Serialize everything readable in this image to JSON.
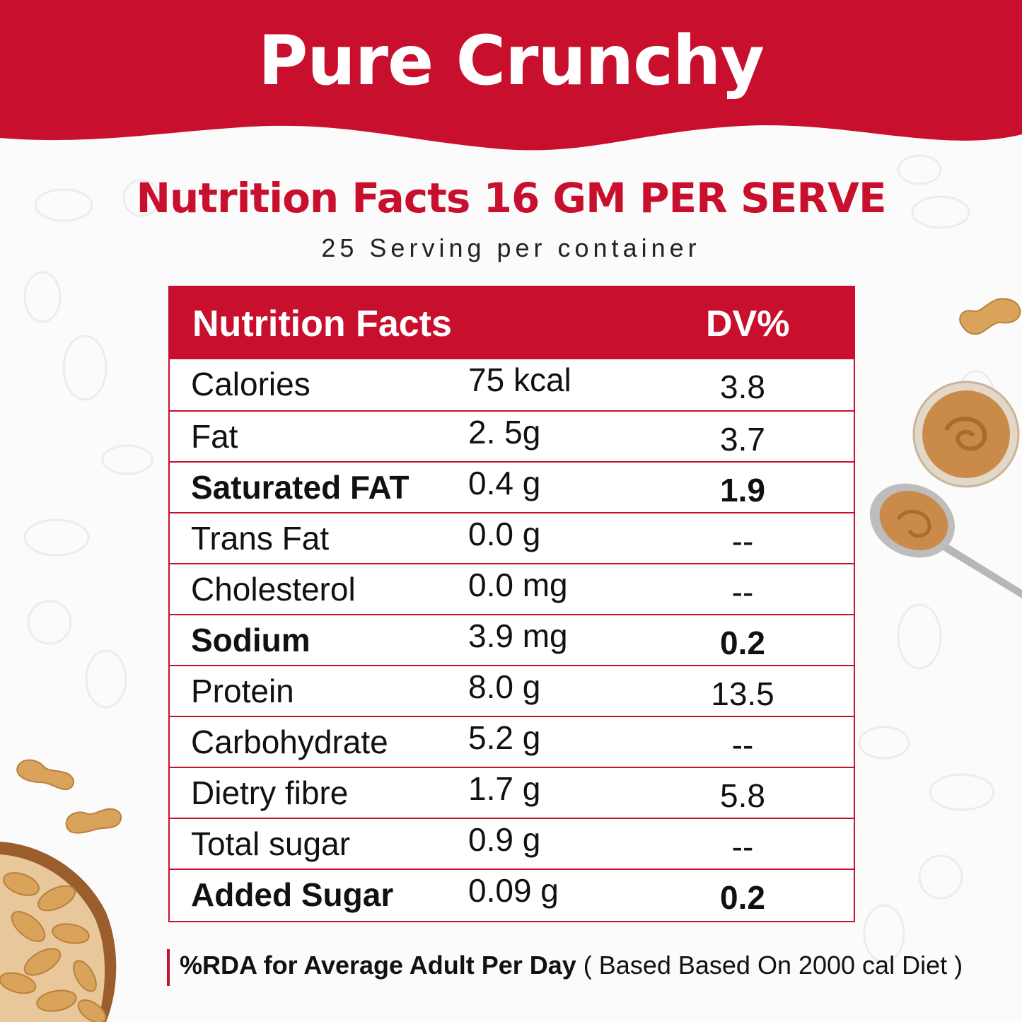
{
  "colors": {
    "brand_red": "#c8102e",
    "background": "#fbfbfb",
    "peanut": "#d9a35c",
    "butter": "#c98a4a"
  },
  "header": {
    "title": "Pure Crunchy"
  },
  "nutrition": {
    "heading": "Nutrition Facts 16 GM PER SERVE",
    "subheading": "25 Serving per container",
    "table": {
      "col_name": "Nutrition  Facts",
      "col_dv": "DV%",
      "rows": [
        {
          "name": "Calories",
          "amount": "75 kcal",
          "dv": "3.8",
          "bold": false
        },
        {
          "name": "Fat",
          "amount": "2. 5g",
          "dv": "3.7",
          "bold": false
        },
        {
          "name": "Saturated FAT",
          "amount": "0.4 g",
          "dv": "1.9",
          "bold": true
        },
        {
          "name": "Trans Fat",
          "amount": "0.0 g",
          "dv": "--",
          "bold": false
        },
        {
          "name": "Cholesterol",
          "amount": "0.0 mg",
          "dv": "--",
          "bold": false
        },
        {
          "name": "Sodium",
          "amount": "3.9 mg",
          "dv": "0.2",
          "bold": true
        },
        {
          "name": "Protein",
          "amount": "8.0 g",
          "dv": "13.5",
          "bold": false
        },
        {
          "name": "Carbohydrate",
          "amount": "5.2 g",
          "dv": "--",
          "bold": false
        },
        {
          "name": "Dietry fibre",
          "amount": "1.7 g",
          "dv": "5.8",
          "bold": false
        },
        {
          "name": "Total sugar",
          "amount": "0.9 g",
          "dv": "--",
          "bold": false
        },
        {
          "name": "Added Sugar",
          "amount": "0.09 g",
          "dv": "0.2",
          "bold": true
        }
      ]
    }
  },
  "footer": {
    "bold_text": "%RDA for Average Adult Per Day",
    "note": " ( Based Based On 2000  cal Diet )"
  }
}
